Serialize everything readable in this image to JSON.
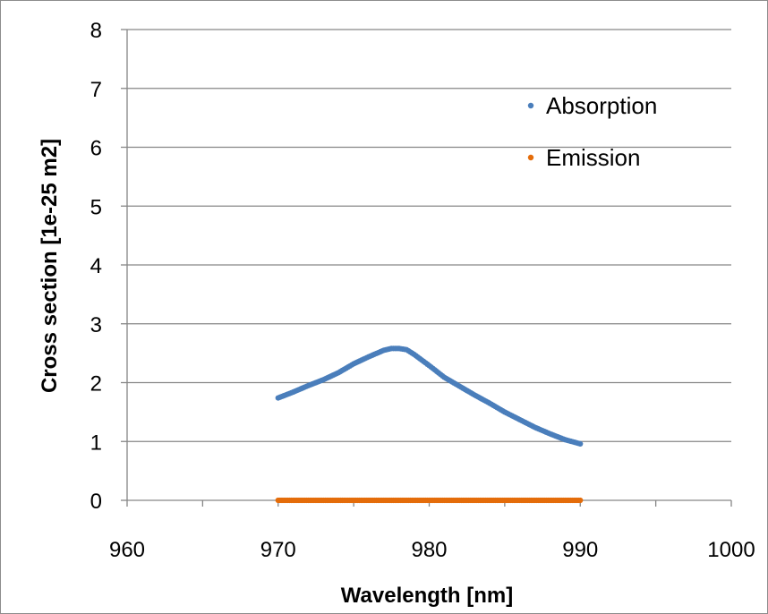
{
  "chart_data": {
    "type": "scatter",
    "title": "",
    "xlabel": "Wavelength [nm]",
    "ylabel": "Cross section [1e-25 m2]",
    "xlim": [
      960,
      1000
    ],
    "ylim": [
      0,
      8
    ],
    "x_ticks": [
      960,
      970,
      980,
      990,
      1000
    ],
    "y_ticks": [
      0,
      1,
      2,
      3,
      4,
      5,
      6,
      7,
      8
    ],
    "x_tick_labels": [
      "960",
      "970",
      "980",
      "990",
      "1000"
    ],
    "y_tick_labels": [
      "0",
      "1",
      "2",
      "3",
      "4",
      "5",
      "6",
      "7",
      "8"
    ],
    "grid": "horizontal major gridlines",
    "legend_position": "top-right",
    "series": [
      {
        "name": "Absorption",
        "color": "#4a7ebb",
        "x": [
          970,
          971,
          972,
          973,
          974,
          975,
          976,
          977,
          977.5,
          978,
          978.5,
          979,
          980,
          981,
          982,
          983,
          984,
          985,
          986,
          987,
          988,
          989,
          990
        ],
        "y": [
          1.74,
          1.84,
          1.95,
          2.05,
          2.17,
          2.32,
          2.44,
          2.55,
          2.58,
          2.58,
          2.56,
          2.48,
          2.29,
          2.09,
          1.94,
          1.79,
          1.65,
          1.5,
          1.37,
          1.24,
          1.13,
          1.03,
          0.96
        ]
      },
      {
        "name": "Emission",
        "color": "#e46c0a",
        "x": [
          970,
          975,
          980,
          985,
          990
        ],
        "y": [
          0,
          0,
          0,
          0,
          0
        ]
      }
    ]
  }
}
